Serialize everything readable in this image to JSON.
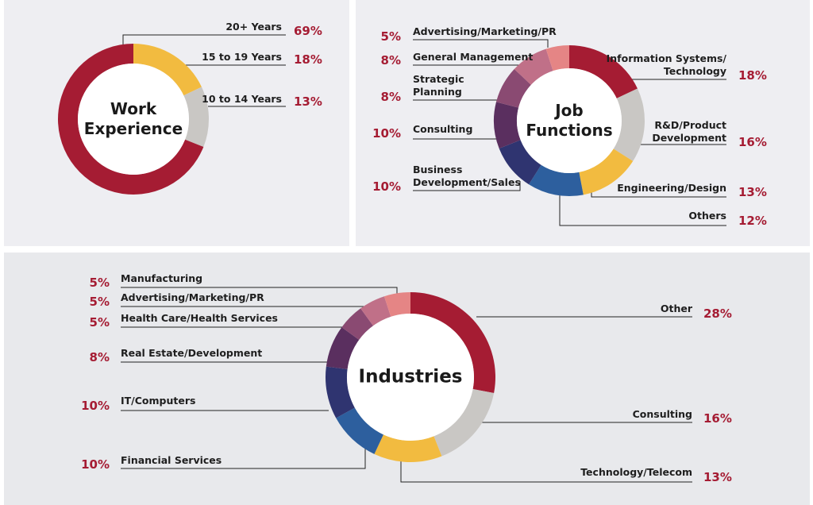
{
  "chart_data": [
    {
      "type": "pie",
      "title": "Work\nExperience",
      "categories": [
        "15 to 19 Years",
        "10 to 14 Years",
        "20+ Years"
      ],
      "values": [
        18,
        13,
        69
      ],
      "value_labels": [
        "18%",
        "13%",
        "69%"
      ],
      "colors": [
        "#f2bb40",
        "#c9c7c4",
        "#a51c33"
      ]
    },
    {
      "type": "pie",
      "title": "Job\nFunctions",
      "categories": [
        "Information Systems/\nTechnology",
        "R&D/Product\nDevelopment",
        "Engineering/Design",
        "Others",
        "Business\nDevelopment/Sales",
        "Consulting",
        "Strategic\nPlanning",
        "General Management",
        "Advertising/Marketing/PR"
      ],
      "values": [
        18,
        16,
        13,
        12,
        10,
        10,
        8,
        8,
        5
      ],
      "value_labels": [
        "18%",
        "16%",
        "13%",
        "12%",
        "10%",
        "10%",
        "8%",
        "8%",
        "5%"
      ],
      "colors": [
        "#a51c33",
        "#c9c7c4",
        "#f2bb40",
        "#2d5f9e",
        "#2f3470",
        "#5a2f5f",
        "#8a4a72",
        "#c07088",
        "#e58585"
      ]
    },
    {
      "type": "pie",
      "title": "Industries",
      "categories": [
        "Other",
        "Consulting",
        "Technology/Telecom",
        "Financial Services",
        "IT/Computers",
        "Real Estate/Development",
        "Health Care/Health Services",
        "Advertising/Marketing/PR",
        "Manufacturing"
      ],
      "values": [
        28,
        16,
        13,
        10,
        10,
        8,
        5,
        5,
        5
      ],
      "value_labels": [
        "28%",
        "16%",
        "13%",
        "10%",
        "10%",
        "8%",
        "5%",
        "5%",
        "5%"
      ],
      "colors": [
        "#a51c33",
        "#c9c7c4",
        "#f2bb40",
        "#2d5f9e",
        "#2f3470",
        "#5a2f5f",
        "#8a4a72",
        "#c07088",
        "#e58585"
      ]
    }
  ]
}
